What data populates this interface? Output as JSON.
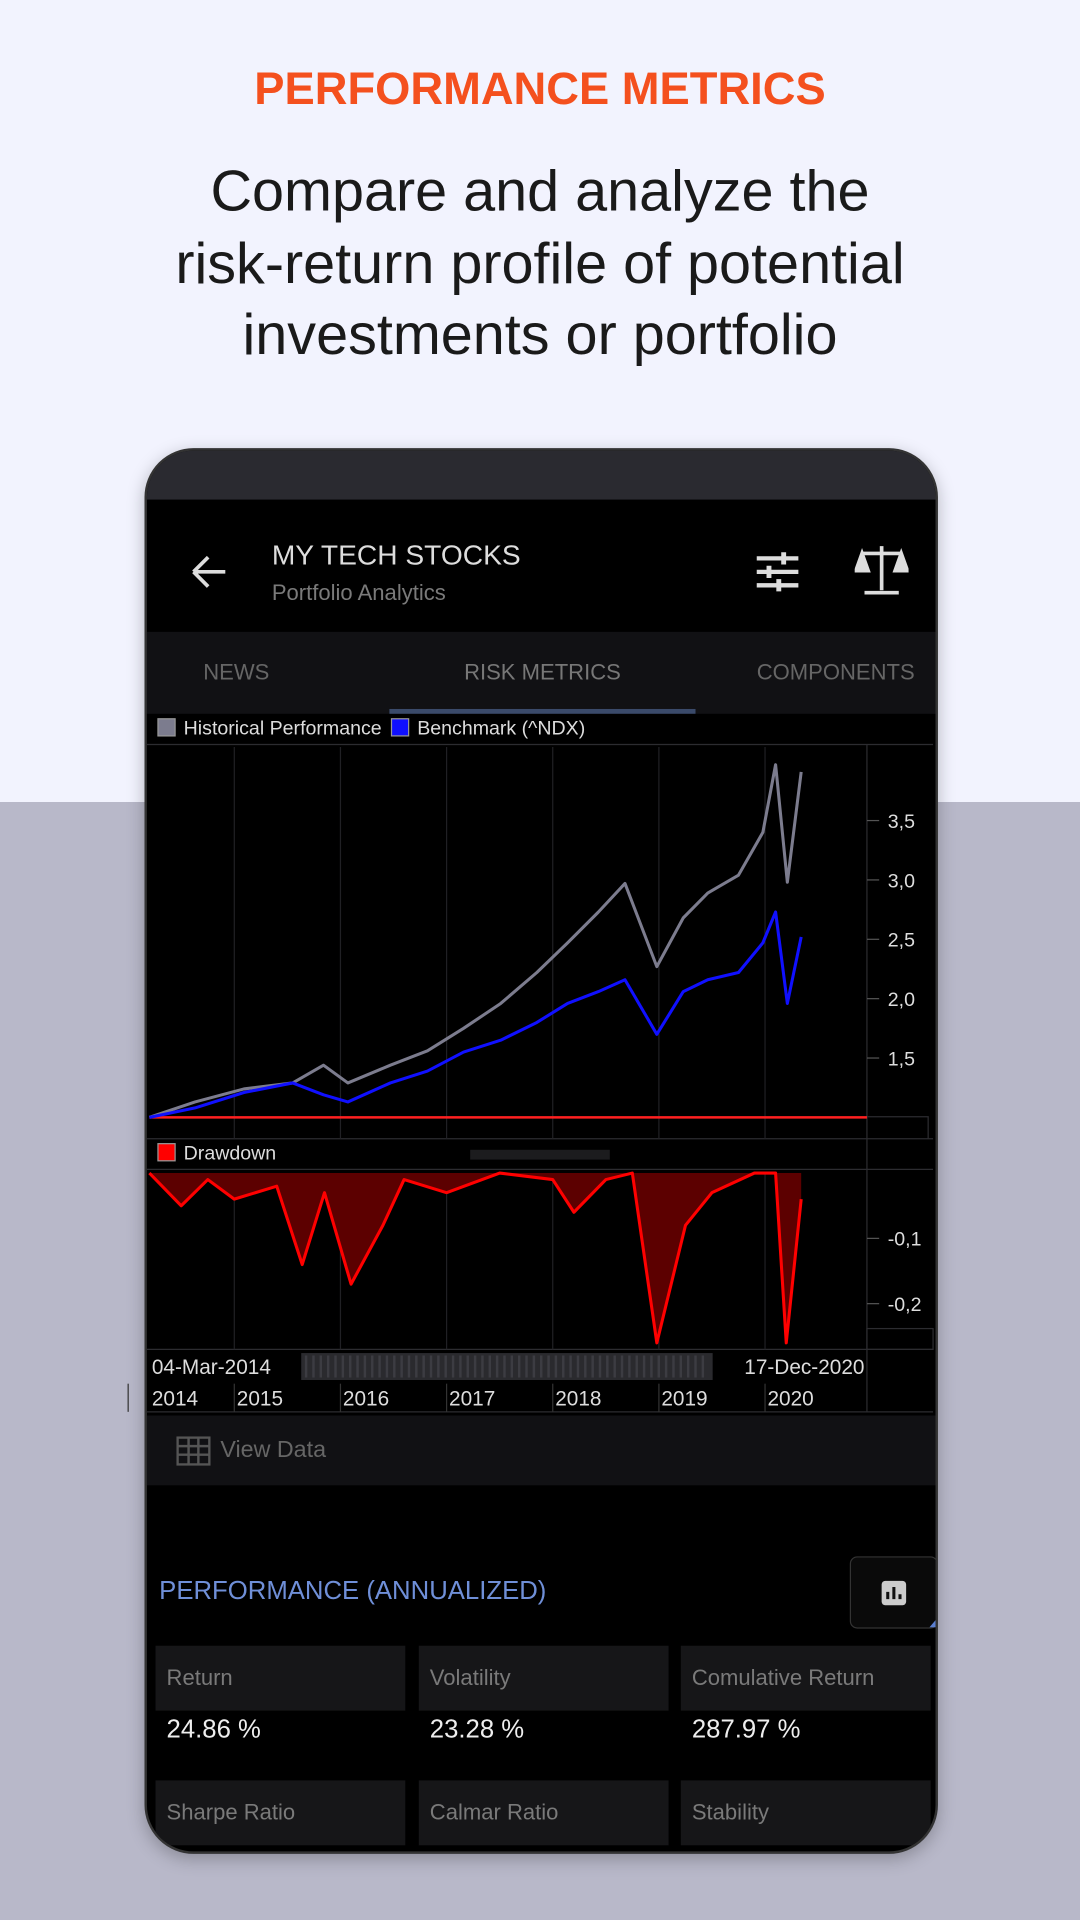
{
  "header": {
    "title": "PERFORMANCE METRICS",
    "subtitle_lines": [
      "Compare and analyze the",
      "risk-return profile of potential",
      "investments or portfolio"
    ]
  },
  "app_bar": {
    "title": "MY TECH STOCKS",
    "subtitle": "Portfolio Analytics"
  },
  "tabs": [
    "NEWS",
    "RISK METRICS",
    "COMPONENTS"
  ],
  "chart_data": [
    {
      "type": "line",
      "x": [
        2014.2,
        2014.63,
        2015.09,
        2015.55,
        2015.84,
        2016.07,
        2016.47,
        2016.82,
        2017.16,
        2017.51,
        2017.85,
        2018.14,
        2018.43,
        2018.68,
        2018.98,
        2019.23,
        2019.46,
        2019.75,
        2019.98,
        2020.1,
        2020.21,
        2020.34
      ],
      "series": [
        {
          "name": "Historical Performance",
          "color": "#7c7c8e",
          "values": [
            1.0,
            1.13,
            1.24,
            1.29,
            1.44,
            1.29,
            1.44,
            1.56,
            1.75,
            1.96,
            2.22,
            2.47,
            2.73,
            2.97,
            2.27,
            2.68,
            2.89,
            3.04,
            3.4,
            3.97,
            2.98,
            3.91
          ]
        },
        {
          "name": "Benchmark (^NDX)",
          "color": "#1010ff",
          "values": [
            1.0,
            1.08,
            1.21,
            1.29,
            1.19,
            1.13,
            1.29,
            1.39,
            1.55,
            1.65,
            1.8,
            1.96,
            2.06,
            2.16,
            1.7,
            2.06,
            2.16,
            2.22,
            2.47,
            2.73,
            1.96,
            2.52
          ]
        }
      ],
      "xlim": [
        2014.2,
        2020.96
      ],
      "xticks": [
        2015,
        2016,
        2017,
        2018,
        2019,
        2020
      ],
      "ylim": [
        0.82,
        4.12
      ],
      "yticks": [
        {
          "value": 1.5,
          "label": "1,5"
        },
        {
          "value": 2.0,
          "label": "2,0"
        },
        {
          "value": 2.5,
          "label": "2,5"
        },
        {
          "value": 3.0,
          "label": "3,0"
        },
        {
          "value": 3.5,
          "label": "3,5"
        }
      ],
      "reference_line": 1.0,
      "reference_color": "#ff2020",
      "grid": true
    },
    {
      "type": "area",
      "x": [
        2014.2,
        2014.5,
        2014.75,
        2015.0,
        2015.4,
        2015.64,
        2015.85,
        2016.1,
        2016.4,
        2016.6,
        2017.0,
        2017.5,
        2018.0,
        2018.2,
        2018.5,
        2018.75,
        2018.98,
        2019.25,
        2019.5,
        2019.9,
        2020.1,
        2020.2,
        2020.34
      ],
      "series": [
        {
          "name": "Drawdown",
          "color": "#ff0000",
          "fill_color": "#5c0000",
          "values": [
            0,
            -0.05,
            -0.01,
            -0.04,
            -0.02,
            -0.14,
            -0.03,
            -0.17,
            -0.08,
            -0.01,
            -0.03,
            0,
            -0.01,
            -0.06,
            -0.01,
            0,
            -0.26,
            -0.08,
            -0.03,
            0,
            0,
            -0.26,
            -0.04
          ]
        }
      ],
      "xlim": [
        2014.2,
        2020.96
      ],
      "xticks": [
        2014,
        2015,
        2016,
        2017,
        2018,
        2019,
        2020
      ],
      "ylim": [
        -0.27,
        0
      ],
      "yticks": [
        {
          "value": -0.2,
          "label": "-0,2"
        },
        {
          "value": -0.1,
          "label": "-0,1"
        }
      ],
      "range_start": "04-Mar-2014",
      "range_end": "17-Dec-2020",
      "grid": true
    }
  ],
  "view_data": "View Data",
  "performance": {
    "title": "PERFORMANCE (ANNUALIZED)",
    "metrics": [
      {
        "label": "Return",
        "value": "24.86 %"
      },
      {
        "label": "Volatility",
        "value": "23.28 %"
      },
      {
        "label": "Comulative Return",
        "value": "287.97 %"
      },
      {
        "label": "Sharpe Ratio"
      },
      {
        "label": "Calmar Ratio"
      },
      {
        "label": "Stability"
      }
    ]
  }
}
